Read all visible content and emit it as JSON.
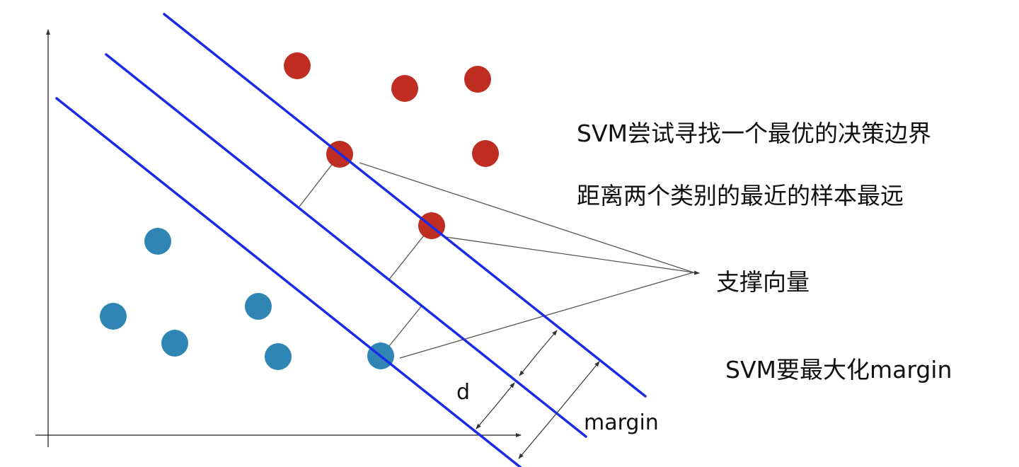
{
  "colors": {
    "boundary": "#1a2be8",
    "class_red": "#be2c22",
    "class_blue": "#2f86b5",
    "axis": "#222222",
    "annotation": "#444444"
  },
  "text": {
    "line1": "SVM尝试寻找一个最优的决策边界",
    "line2": "距离两个类别的最近的样本最远",
    "support_vectors": "支撑向量",
    "maximize": "SVM要最大化margin",
    "d_label": "d",
    "margin_label": "margin"
  }
}
